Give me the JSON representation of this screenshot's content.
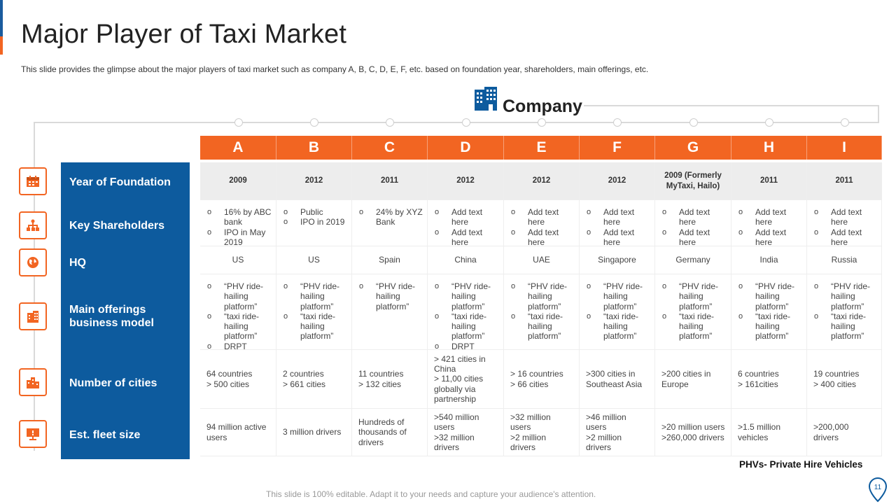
{
  "title": "Major Player of Taxi Market",
  "subtitle": "This slide provides  the glimpse about the major players of taxi market such as company A, B, C, D, E, F, etc. based on foundation  year, shareholders,  main offerings,  etc.",
  "company_label": "Company",
  "columns": [
    "A",
    "B",
    "C",
    "D",
    "E",
    "F",
    "G",
    "H",
    "I"
  ],
  "rows": {
    "year": {
      "label": "Year of Foundation",
      "icon": "calendar-icon",
      "values": [
        "2009",
        "2012",
        "2011",
        "2012",
        "2012",
        "2012",
        "2009 (Formerly MyTaxi, Hailo)",
        "2011",
        "2011"
      ]
    },
    "shareholders": {
      "label": "Key Shareholders",
      "icon": "hierarchy-icon",
      "values": [
        [
          "16% by ABC bank",
          "IPO in May 2019"
        ],
        [
          "Public",
          "IPO in 2019"
        ],
        [
          "24% by XYZ Bank"
        ],
        [
          "Add text here",
          "Add text here"
        ],
        [
          "Add text here",
          "Add text here"
        ],
        [
          "Add text here",
          "Add text here"
        ],
        [
          "Add text here",
          "Add text here"
        ],
        [
          "Add text here",
          "Add text here"
        ],
        [
          "Add text here",
          "Add text here"
        ]
      ]
    },
    "hq": {
      "label": "HQ",
      "icon": "globe-icon",
      "values": [
        "US",
        "US",
        "Spain",
        "China",
        "UAE",
        "Singapore",
        "Germany",
        "India",
        "Russia"
      ]
    },
    "offerings": {
      "label": "Main offerings business model",
      "icon": "buildings-icon",
      "values": [
        [
          "“PHV ride-hailing platform”",
          "“taxi ride-hailing platform”",
          "DRPT"
        ],
        [
          "“PHV ride-hailing platform”",
          "“taxi ride-hailing platform”"
        ],
        [
          "“PHV ride-hailing platform”"
        ],
        [
          "“PHV ride-hailing platform”",
          "“taxi ride-hailing platform”",
          "DRPT"
        ],
        [
          "“PHV ride-hailing platform”",
          "“taxi ride-hailing platform”"
        ],
        [
          "“PHV ride-hailing platform”",
          "“taxi ride-hailing platform”"
        ],
        [
          "“PHV ride-hailing platform”",
          "“taxi ride-hailing platform”"
        ],
        [
          "“PHV ride-hailing platform”",
          "“taxi ride-hailing platform”"
        ],
        [
          "“PHV ride-hailing platform”",
          "“taxi ride-hailing platform”"
        ]
      ]
    },
    "cities": {
      "label": "Number of cities",
      "icon": "city-icon",
      "values": [
        [
          "64 countries",
          "> 500 cities"
        ],
        [
          "2 countries",
          "> 661 cities"
        ],
        [
          "11 countries",
          "> 132 cities"
        ],
        [
          "> 421 cities in China",
          "> 11,00 cities globally via partnership"
        ],
        [
          "> 16 countries",
          "> 66 cities"
        ],
        [
          ">300 cities in Southeast Asia"
        ],
        [
          ">200 cities in Europe"
        ],
        [
          "6 countries",
          "> 161cities"
        ],
        [
          "19 countries",
          "> 400 cities"
        ]
      ]
    },
    "fleet": {
      "label": "Est. fleet size",
      "icon": "presentation-icon",
      "values": [
        [
          "94 million active users"
        ],
        [
          "3 million drivers"
        ],
        [
          "Hundreds of thousands of drivers"
        ],
        [
          ">540 million users",
          ">32 million drivers"
        ],
        [
          ">32 million users",
          ">2 million drivers"
        ],
        [
          ">46 million users",
          ">2 million drivers"
        ],
        [
          ">20 million users",
          ">260,000 drivers"
        ],
        [
          ">1.5 million vehicles"
        ],
        [
          ">200,000 drivers"
        ]
      ]
    }
  },
  "note": "PHVs- Private Hire Vehicles",
  "footer": "This slide is 100% editable. Adapt it to your needs and capture your audience's attention.",
  "page_number": "11",
  "colors": {
    "accent": "#f26522",
    "brand_blue": "#0d5b9e"
  }
}
